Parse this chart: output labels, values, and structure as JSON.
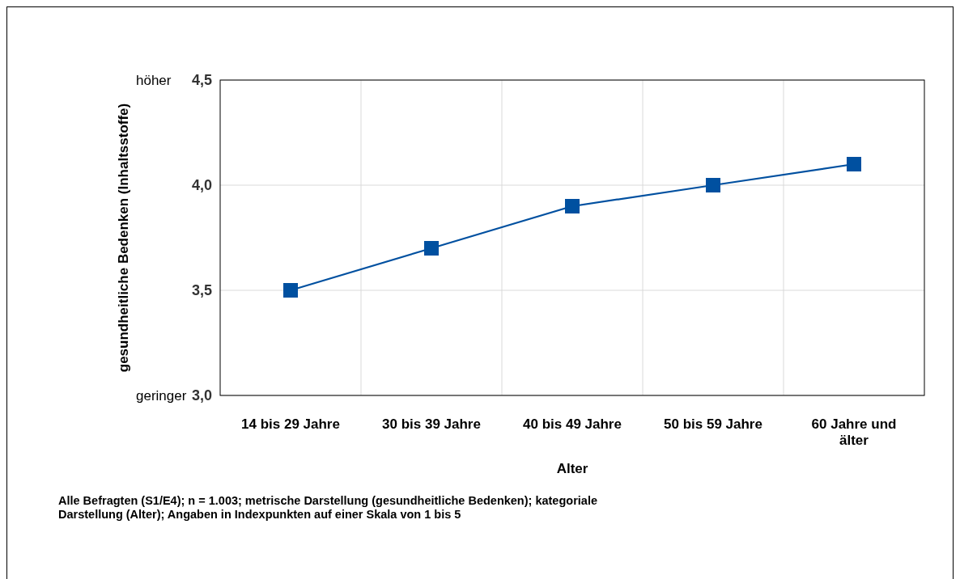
{
  "chart_data": {
    "type": "line",
    "xlabel": "Alter",
    "ylabel": "gesundheitliche Bedenken (Inhaltsstoffe)",
    "categories": [
      "14 bis 29 Jahre",
      "30 bis 39 Jahre",
      "40 bis 49 Jahre",
      "50 bis 59 Jahre",
      "60 Jahre und älter"
    ],
    "series": [
      {
        "color": "#0050a0",
        "values": [
          3.5,
          3.7,
          3.9,
          4.0,
          4.1
        ]
      }
    ],
    "ylim": [
      3.0,
      4.5
    ],
    "yticks": [
      {
        "value": 3.0,
        "label": "3,0"
      },
      {
        "value": 3.5,
        "label": "3,5"
      },
      {
        "value": 4.0,
        "label": "4,0"
      },
      {
        "value": 4.5,
        "label": "4,5"
      }
    ],
    "grid": true,
    "marker": "square",
    "line_style": "solid",
    "annotations": [
      "höher",
      "geringer",
      "Alle Befragten (S1/E4); n = 1.003; metrische Darstellung (gesundheitliche Bedenken); kategoriale Darstellung (Alter); Angaben in Indexpunkten auf einer Skala von 1 bis 5"
    ]
  }
}
